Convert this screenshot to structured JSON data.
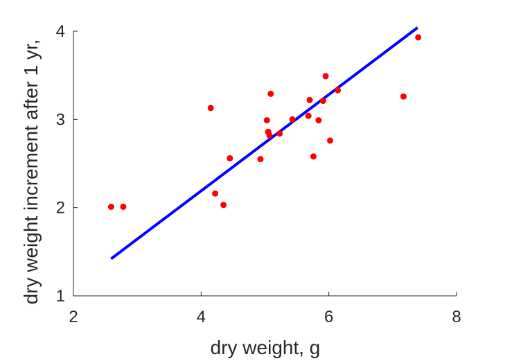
{
  "chart_data": {
    "type": "scatter",
    "title": "",
    "xlabel": "dry weight, g",
    "ylabel": "dry weight increment after 1 yr,",
    "xlim": [
      2,
      8
    ],
    "ylim": [
      1,
      4
    ],
    "x_ticks": [
      2,
      4,
      6,
      8
    ],
    "y_ticks": [
      1,
      2,
      3,
      4
    ],
    "x_tick_labels": [
      "2",
      "4",
      "6",
      "8"
    ],
    "y_tick_labels": [
      "1",
      "2",
      "3",
      "4"
    ],
    "grid": false,
    "legend": "none",
    "series": [
      {
        "kind": "scatter",
        "color": "#ff0000",
        "points": [
          [
            2.59,
            2.01
          ],
          [
            2.78,
            2.01
          ],
          [
            4.15,
            3.13
          ],
          [
            4.22,
            2.16
          ],
          [
            4.35,
            2.03
          ],
          [
            4.45,
            2.56
          ],
          [
            4.93,
            2.55
          ],
          [
            5.03,
            2.99
          ],
          [
            5.05,
            2.86
          ],
          [
            5.07,
            2.82
          ],
          [
            5.09,
            3.29
          ],
          [
            5.23,
            2.84
          ],
          [
            5.43,
            3.0
          ],
          [
            5.68,
            3.04
          ],
          [
            5.7,
            3.22
          ],
          [
            5.76,
            2.58
          ],
          [
            5.84,
            2.99
          ],
          [
            5.91,
            3.21
          ],
          [
            5.95,
            3.49
          ],
          [
            6.02,
            2.76
          ],
          [
            6.14,
            3.33
          ],
          [
            7.17,
            3.26
          ],
          [
            7.4,
            3.93
          ]
        ]
      },
      {
        "kind": "line",
        "color": "#0000ff",
        "points": [
          [
            2.59,
            1.42
          ],
          [
            7.39,
            4.04
          ]
        ]
      }
    ]
  }
}
